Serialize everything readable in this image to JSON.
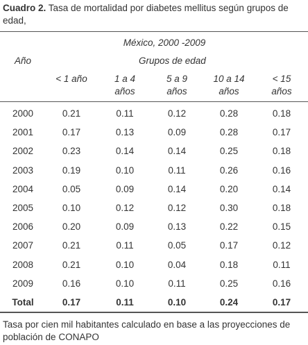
{
  "header": {
    "label": "Cuadro 2.",
    "title": "Tasa de mortalidad por diabetes mellitus según grupos de edad,"
  },
  "table": {
    "subtitle": "México, 2000 -2009",
    "year_header": "Año",
    "group_header": "Grupos de edad",
    "columns": [
      [
        "< 1 año"
      ],
      [
        "1 a 4",
        "años"
      ],
      [
        "5 a 9",
        "años"
      ],
      [
        "10 a 14",
        "años"
      ],
      [
        "< 15",
        "años"
      ]
    ],
    "rows": [
      [
        "2000",
        "0.21",
        "0.11",
        "0.12",
        "0.28",
        "0.18"
      ],
      [
        "2001",
        "0.17",
        "0.13",
        "0.09",
        "0.28",
        "0.17"
      ],
      [
        "2002",
        "0.23",
        "0.14",
        "0.14",
        "0.25",
        "0.18"
      ],
      [
        "2003",
        "0.19",
        "0.10",
        "0.11",
        "0.26",
        "0.16"
      ],
      [
        "2004",
        "0.05",
        "0.09",
        "0.14",
        "0.20",
        "0.14"
      ],
      [
        "2005",
        "0.10",
        "0.12",
        "0.12",
        "0.30",
        "0.18"
      ],
      [
        "2006",
        "0.20",
        "0.09",
        "0.13",
        "0.22",
        "0.15"
      ],
      [
        "2007",
        "0.21",
        "0.11",
        "0.05",
        "0.17",
        "0.12"
      ],
      [
        "2008",
        "0.21",
        "0.10",
        "0.04",
        "0.18",
        "0.11"
      ],
      [
        "2009",
        "0.16",
        "0.10",
        "0.11",
        "0.25",
        "0.16"
      ]
    ],
    "total": [
      "Total",
      "0.17",
      "0.11",
      "0.10",
      "0.24",
      "0.17"
    ]
  },
  "footnote": "Tasa por cien mil habitantes calculado en base a las proyecciones de población de CONAPO"
}
